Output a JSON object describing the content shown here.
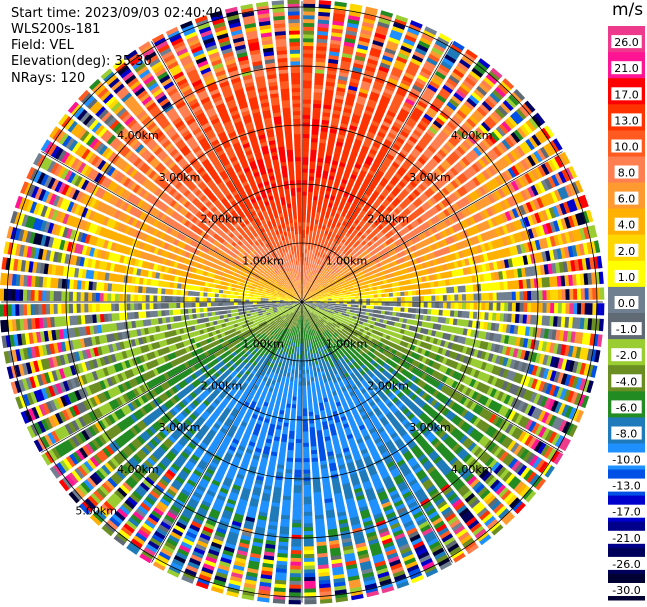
{
  "info": {
    "start_time": "Start time: 2023/09/03 02:40:40",
    "instrument": "WLS200s-181",
    "field": "Field: VEL",
    "elevation": "Elevation(deg): 35.30",
    "nrays": "NRays: 120"
  },
  "colorbar": {
    "unit": "m/s",
    "ticks": [
      "26.0",
      "21.0",
      "17.0",
      "13.0",
      "10.0",
      "8.0",
      "6.0",
      "4.0",
      "2.0",
      "1.0",
      "0.0",
      "-1.0",
      "-2.0",
      "-4.0",
      "-6.0",
      "-8.0",
      "-10.0",
      "-13.0",
      "-17.0",
      "-21.0",
      "-26.0",
      "-30.0"
    ],
    "colors": [
      "#ee3a8c",
      "#ff1493",
      "#ff0000",
      "#ff3300",
      "#ff5a1f",
      "#ff7f50",
      "#ff9a30",
      "#ffb000",
      "#ffd700",
      "#ffff00",
      "#708090",
      "#606a75",
      "#9acd32",
      "#6b8e23",
      "#228b22",
      "#1e7ab8",
      "#1e90ff",
      "#0050e6",
      "#0000cd",
      "#00008b",
      "#00005a",
      "#000033"
    ]
  },
  "chart_data": {
    "type": "ppi",
    "field": "VEL",
    "nrays": 120,
    "range_rings_km": [
      1,
      2,
      3,
      4,
      5
    ],
    "ring_labels": [
      "1.00km",
      "2.00km",
      "3.00km",
      "4.00km",
      "5.00km"
    ],
    "max_range_km": 5.1,
    "velocity_pattern": {
      "toward_north_sector_peak_ms": 13.0,
      "toward_south_sector_peak_ms": -13.0,
      "zero_line_axis": "east-west"
    }
  }
}
